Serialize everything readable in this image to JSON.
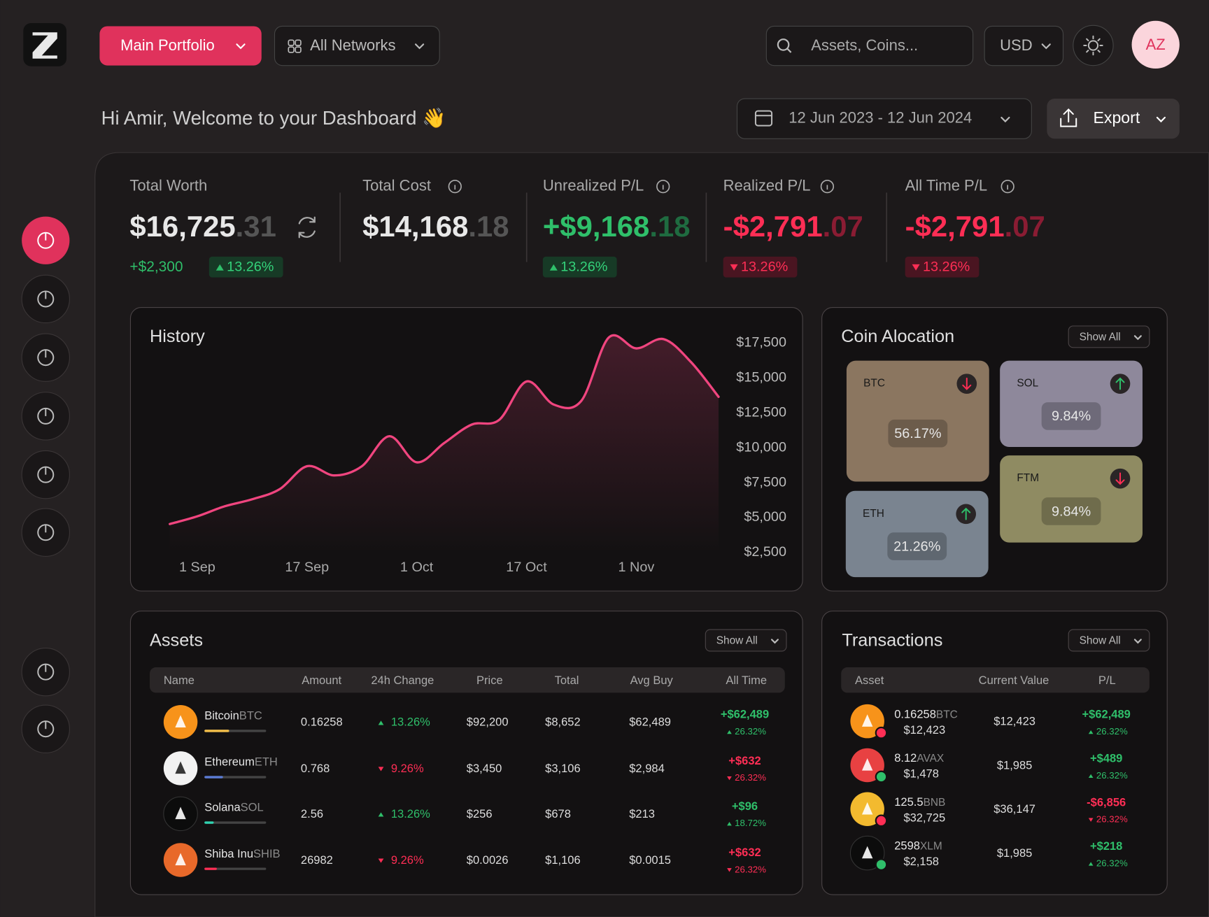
{
  "header": {
    "portfolio": "Main Portfolio",
    "network": "All Networks",
    "search_placeholder": "Assets, Coins...",
    "currency": "USD",
    "avatar": "AZ"
  },
  "welcome": "Hi Amir, Welcome to your Dashboard 👋",
  "date_range": "12 Jun 2023 - 12 Jun 2024",
  "export": "Export",
  "stats": [
    {
      "label": "Total Worth",
      "whole": "$16,725",
      "cents": ".31",
      "value_color": "#e8e8e8",
      "change": "+$2,300",
      "percent": "13.26%",
      "trend": "up"
    },
    {
      "label": "Total Cost",
      "whole": "$14,168",
      "cents": ".18",
      "value_color": "#e8e8e8"
    },
    {
      "label": "Unrealized P/L",
      "whole": "+$9,168",
      "cents": ".18",
      "value_color": "#2fbf6a",
      "percent": "13.26%",
      "trend": "up"
    },
    {
      "label": "Realized P/L",
      "whole": "-$2,791",
      "cents": ".07",
      "value_color": "#ff2e55",
      "percent": "13.26%",
      "trend": "down"
    },
    {
      "label": "All Time P/L",
      "whole": "-$2,791",
      "cents": ".07",
      "value_color": "#ff2e55",
      "percent": "13.26%",
      "trend": "down"
    }
  ],
  "chart_data": {
    "type": "line",
    "title": "History",
    "color": "#f0457f",
    "categories": [
      null,
      "1 Sep",
      null,
      null,
      null,
      "17 Sep",
      null,
      null,
      null,
      "1 Oct",
      null,
      null,
      null,
      "17 Oct",
      null,
      null,
      null,
      "1 Nov",
      null,
      null,
      null
    ],
    "values": [
      4540,
      5090,
      5810,
      6310,
      7030,
      8680,
      8020,
      8680,
      10830,
      8960,
      10340,
      11660,
      11990,
      14750,
      13090,
      13370,
      17900,
      17120,
      17780,
      16130,
      13650
    ],
    "ylim": [
      2500,
      18000
    ],
    "yticks": [
      {
        "value": 2500,
        "label": "$2,500"
      },
      {
        "value": 5000,
        "label": "$5,000"
      },
      {
        "value": 7500,
        "label": "$7,500"
      },
      {
        "value": 10000,
        "label": "$10,000"
      },
      {
        "value": 12500,
        "label": "$12,500"
      },
      {
        "value": 15000,
        "label": "$15,000"
      },
      {
        "value": 17500,
        "label": "$17,500"
      }
    ]
  },
  "allocation": {
    "title": "Coin Alocation",
    "show_all": "Show All",
    "coins": [
      {
        "name": "BTC",
        "percent": "56.17%",
        "trend": "down",
        "color": "#8b7660"
      },
      {
        "name": "SOL",
        "percent": "9.84%",
        "trend": "up",
        "color": "#8e889b"
      },
      {
        "name": "ETH",
        "percent": "21.26%",
        "trend": "up",
        "color": "#7a8490"
      },
      {
        "name": "FTM",
        "percent": "9.84%",
        "trend": "down",
        "color": "#8f8b62"
      }
    ]
  },
  "assets": {
    "title": "Assets",
    "show_all": "Show All",
    "columns": [
      "Name",
      "Amount",
      "24h Change",
      "Price",
      "Total",
      "Avg Buy",
      "All Time"
    ],
    "rows": [
      {
        "name": "Bitcoin",
        "symbol": "BTC",
        "amount": "0.16258",
        "change": "13.26%",
        "change_trend": "up",
        "price": "$92,200",
        "total": "$8,652",
        "avg_buy": "$62,489",
        "all_time": "+$62,489",
        "all_time_percent": "26.32%",
        "all_time_trend": "up",
        "icon_color": "#f7931a",
        "bar_color": "#f5c04a",
        "progress": 0.4
      },
      {
        "name": "Ethereum",
        "symbol": "ETH",
        "amount": "0.768",
        "change": "9.26%",
        "change_trend": "down",
        "price": "$3,450",
        "total": "$3,106",
        "avg_buy": "$2,984",
        "all_time": "+$632",
        "all_time_percent": "26.32%",
        "all_time_trend": "down",
        "icon_color": "#f2f2f2",
        "bar_color": "#5b7bd5",
        "progress": 0.3
      },
      {
        "name": "Solana",
        "symbol": "SOL",
        "amount": "2.56",
        "change": "13.26%",
        "change_trend": "up",
        "price": "$256",
        "total": "$678",
        "avg_buy": "$213",
        "all_time": "+$96",
        "all_time_percent": "18.72%",
        "all_time_trend": "up",
        "icon_color": "#0c0c0c",
        "bar_color": "#2fd3b0",
        "progress": 0.15
      },
      {
        "name": "Shiba Inu",
        "symbol": "SHIB",
        "amount": "26982",
        "change": "9.26%",
        "change_trend": "down",
        "price": "$0.0026",
        "total": "$1,106",
        "avg_buy": "$0.0015",
        "all_time": "+$632",
        "all_time_percent": "26.32%",
        "all_time_trend": "down",
        "icon_color": "#e8692a",
        "bar_color": "#ff2e55",
        "progress": 0.2
      }
    ]
  },
  "transactions": {
    "title": "Transactions",
    "show_all": "Show All",
    "columns": [
      "Asset",
      "Current Value",
      "P/L"
    ],
    "rows": [
      {
        "amount": "0.16258",
        "symbol": "BTC",
        "value": "$12,423",
        "current": "$12,423",
        "pl": "+$62,489",
        "pl_percent": "26.32%",
        "trend": "up",
        "icon_color": "#f7931a",
        "badge_color": "#ff2e55"
      },
      {
        "amount": "8.12",
        "symbol": "AVAX",
        "value": "$1,478",
        "current": "$1,985",
        "pl": "+$489",
        "pl_percent": "26.32%",
        "trend": "up",
        "icon_color": "#e84142",
        "badge_color": "#2fbf6a"
      },
      {
        "amount": "125.5",
        "symbol": "BNB",
        "value": "$32,725",
        "current": "$36,147",
        "pl": "-$6,856",
        "pl_percent": "26.32%",
        "trend": "down",
        "icon_color": "#f3ba2f",
        "badge_color": "#ff2e55"
      },
      {
        "amount": "2598",
        "symbol": "XLM",
        "value": "$2,158",
        "current": "$1,985",
        "pl": "+$218",
        "pl_percent": "26.32%",
        "trend": "up",
        "icon_color": "#0c0c0c",
        "badge_color": "#2fbf6a"
      }
    ]
  }
}
